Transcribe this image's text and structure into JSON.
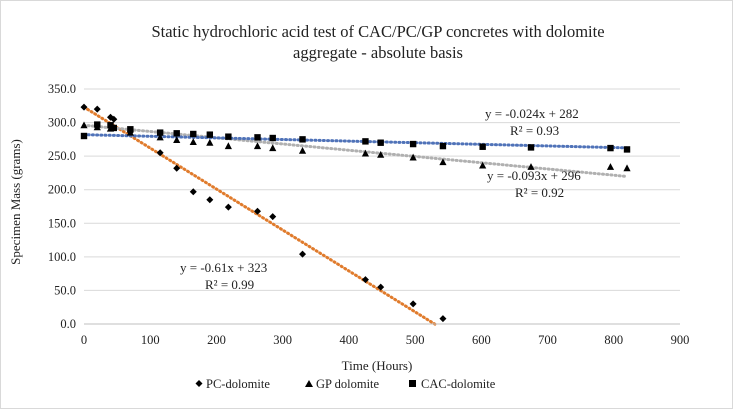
{
  "chart_data": {
    "type": "scatter",
    "title_lines": [
      "Static hydrochloric acid test of CAC/PC/GP concretes with dolomite",
      "aggregate - absolute basis"
    ],
    "xlabel": "Time (Hours)",
    "ylabel": "Specimen Mass (grams)",
    "xlim": [
      0,
      900
    ],
    "ylim": [
      0,
      350
    ],
    "xticks": [
      "0",
      "100",
      "200",
      "300",
      "400",
      "500",
      "600",
      "700",
      "800",
      "900"
    ],
    "yticks": [
      "0.0",
      "50.0",
      "100.0",
      "150.0",
      "200.0",
      "250.0",
      "300.0",
      "350.0"
    ],
    "grid": "horizontal",
    "legend_position": "bottom",
    "series": [
      {
        "name": "PC-dolomite",
        "marker": "diamond",
        "trend_color": "#E07B2C",
        "trend": {
          "slope": -0.61,
          "intercept": 323,
          "x_range": [
            0,
            530
          ]
        },
        "equation": "y = -0.61x + 323",
        "r2": "R² = 0.99",
        "points": [
          [
            0,
            323
          ],
          [
            20,
            320
          ],
          [
            40,
            308
          ],
          [
            45,
            305
          ],
          [
            70,
            286
          ],
          [
            115,
            255
          ],
          [
            140,
            232
          ],
          [
            165,
            197
          ],
          [
            190,
            185
          ],
          [
            218,
            174
          ],
          [
            262,
            168
          ],
          [
            285,
            160
          ],
          [
            330,
            104
          ],
          [
            425,
            66
          ],
          [
            448,
            55
          ],
          [
            497,
            30
          ],
          [
            542,
            8
          ]
        ]
      },
      {
        "name": "GP dolomite",
        "marker": "triangle",
        "trend_color": "#B0B0B0",
        "trend": {
          "slope": -0.093,
          "intercept": 296,
          "x_range": [
            0,
            820
          ]
        },
        "equation": "y = -0.093x + 296",
        "r2": "R² = 0.92",
        "points": [
          [
            0,
            296
          ],
          [
            20,
            293
          ],
          [
            40,
            291
          ],
          [
            70,
            285
          ],
          [
            115,
            278
          ],
          [
            140,
            274
          ],
          [
            165,
            271
          ],
          [
            190,
            270
          ],
          [
            218,
            265
          ],
          [
            262,
            265
          ],
          [
            285,
            262
          ],
          [
            330,
            258
          ],
          [
            425,
            254
          ],
          [
            448,
            252
          ],
          [
            497,
            248
          ],
          [
            542,
            241
          ],
          [
            602,
            236
          ],
          [
            675,
            234
          ],
          [
            795,
            234
          ],
          [
            820,
            232
          ]
        ]
      },
      {
        "name": "CAC-dolomite",
        "marker": "square",
        "trend_color": "#4F72B8",
        "trend": {
          "slope": -0.024,
          "intercept": 282,
          "x_range": [
            0,
            820
          ]
        },
        "equation": "y = -0.024x + 282",
        "r2": "R² = 0.93",
        "points": [
          [
            0,
            280
          ],
          [
            20,
            297
          ],
          [
            40,
            296
          ],
          [
            45,
            292
          ],
          [
            70,
            290
          ],
          [
            115,
            285
          ],
          [
            140,
            284
          ],
          [
            165,
            283
          ],
          [
            190,
            282
          ],
          [
            218,
            279
          ],
          [
            262,
            278
          ],
          [
            285,
            277
          ],
          [
            330,
            275
          ],
          [
            425,
            272
          ],
          [
            448,
            270
          ],
          [
            497,
            268
          ],
          [
            542,
            265
          ],
          [
            602,
            264
          ],
          [
            675,
            263
          ],
          [
            795,
            262
          ],
          [
            820,
            260
          ]
        ]
      }
    ]
  }
}
